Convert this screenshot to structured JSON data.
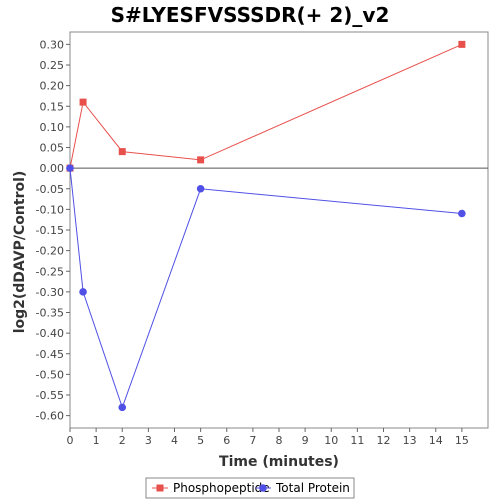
{
  "chart_data": {
    "type": "line",
    "title": "S#LYESFVSSSDR(+ 2)_v2",
    "xlabel": "Time (minutes)",
    "ylabel": "log2(dDAVP/Control)",
    "xlim": [
      0,
      16
    ],
    "ylim": [
      -0.63,
      0.33
    ],
    "xticks": [
      0,
      1,
      2,
      3,
      4,
      5,
      6,
      7,
      8,
      9,
      10,
      11,
      12,
      13,
      14,
      15
    ],
    "yticks": [
      0.3,
      0.25,
      0.2,
      0.15,
      0.1,
      0.05,
      0.0,
      -0.05,
      -0.1,
      -0.15,
      -0.2,
      -0.25,
      -0.3,
      -0.35,
      -0.4,
      -0.45,
      -0.5,
      -0.55,
      -0.6
    ],
    "grid": false,
    "legend_position": "bottom",
    "series": [
      {
        "name": "Phosphopeptide",
        "color": "#e8504c",
        "marker": "square",
        "x": [
          0,
          0.5,
          2,
          5,
          15
        ],
        "y": [
          0.0,
          0.16,
          0.04,
          0.02,
          0.3
        ]
      },
      {
        "name": "Total Protein",
        "color": "#5050e6",
        "marker": "circle",
        "x": [
          0,
          0.5,
          2,
          5,
          15
        ],
        "y": [
          0.0,
          -0.3,
          -0.58,
          -0.05,
          -0.11
        ]
      }
    ]
  }
}
